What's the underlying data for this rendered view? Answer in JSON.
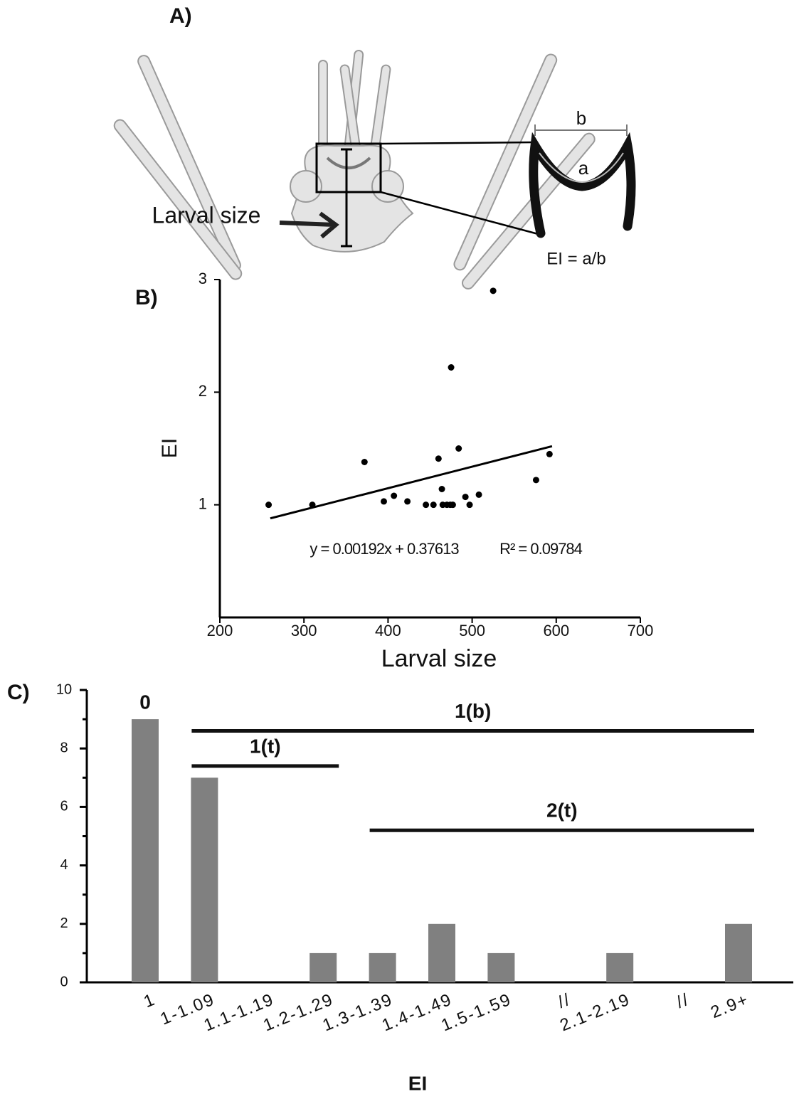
{
  "panel_a": {
    "label": "A)",
    "size_label": "Larval size",
    "b_label": "b",
    "a_label": "a",
    "formula": "EI = a/b"
  },
  "chart_data": [
    {
      "type": "scatter",
      "panel_label": "B)",
      "x": [
        258,
        310,
        372,
        395,
        407,
        423,
        445,
        454,
        460,
        464,
        465,
        470,
        474,
        477,
        475,
        484,
        492,
        497,
        508,
        525,
        576,
        592
      ],
      "values": [
        1.0,
        1.0,
        1.38,
        1.03,
        1.08,
        1.03,
        1.0,
        1.0,
        1.41,
        1.14,
        1.0,
        1.0,
        1.0,
        1.0,
        2.22,
        1.5,
        1.07,
        1.0,
        1.09,
        2.9,
        1.22,
        1.45
      ],
      "color": "#000000",
      "xlim": [
        200,
        700
      ],
      "xticks": [
        200,
        300,
        400,
        500,
        600,
        700
      ],
      "ylim": [
        0,
        3
      ],
      "yticks": [
        1,
        2,
        3
      ],
      "x_label": "Larval size",
      "y_label": "EI",
      "trendline": {
        "x": [
          260,
          595
        ],
        "values": [
          0.88,
          1.52
        ]
      },
      "annotations": [
        "y = 0.00192x + 0.37613",
        "R² = 0.09784"
      ]
    },
    {
      "type": "bar",
      "panel_label": "C)",
      "categories": [
        "1",
        "1-1.09",
        "1.1-1.19",
        "1.2-1.29",
        "1.3-1.39",
        "1.4-1.49",
        "1.5-1.59",
        "//",
        "2.1-2.19",
        "//",
        "2.9+"
      ],
      "values": [
        9,
        7,
        0,
        1,
        1,
        2,
        1,
        null,
        1,
        null,
        2
      ],
      "color": "#808080",
      "ylim": [
        0,
        10
      ],
      "yticks": [
        0,
        2,
        4,
        6,
        8,
        10
      ],
      "minor_yticks": [
        1,
        3,
        5,
        7,
        9
      ],
      "x_label": "EI",
      "groups": [
        {
          "label": "0",
          "span": [
            0,
            0
          ],
          "level": 9
        },
        {
          "label": "1(b)",
          "span": [
            1,
            10
          ],
          "level": 8.6
        },
        {
          "label": "1(t)",
          "span": [
            1,
            3
          ],
          "level": 7.4
        },
        {
          "label": "2(t)",
          "span": [
            4,
            10
          ],
          "level": 5.2
        }
      ]
    }
  ]
}
